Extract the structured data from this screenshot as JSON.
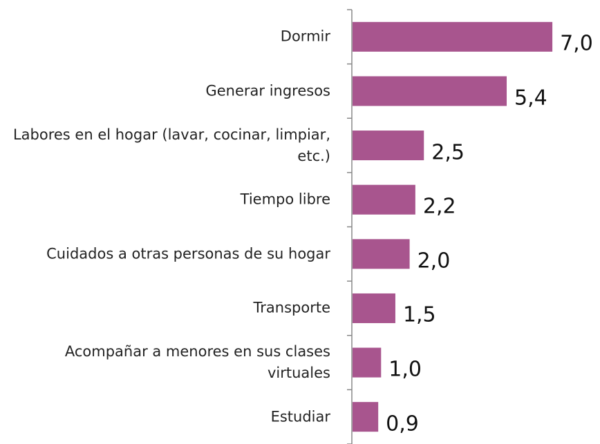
{
  "chart_data": {
    "type": "bar",
    "orientation": "horizontal",
    "categories": [
      "Dormir",
      "Generar ingresos",
      "Labores en el hogar (lavar, cocinar, limpiar, etc.)",
      "Tiempo libre",
      "Cuidados a otras personas de su hogar",
      "Transporte",
      "Acompañar a menores en sus clases virtuales",
      "Estudiar"
    ],
    "values": [
      7.0,
      5.4,
      2.5,
      2.2,
      2.0,
      1.5,
      1.0,
      0.9
    ],
    "value_labels": [
      "7,0",
      "5,4",
      "2,5",
      "2,2",
      "2,0",
      "1,5",
      "1,0",
      "0,9"
    ],
    "color": "#a8558e"
  }
}
